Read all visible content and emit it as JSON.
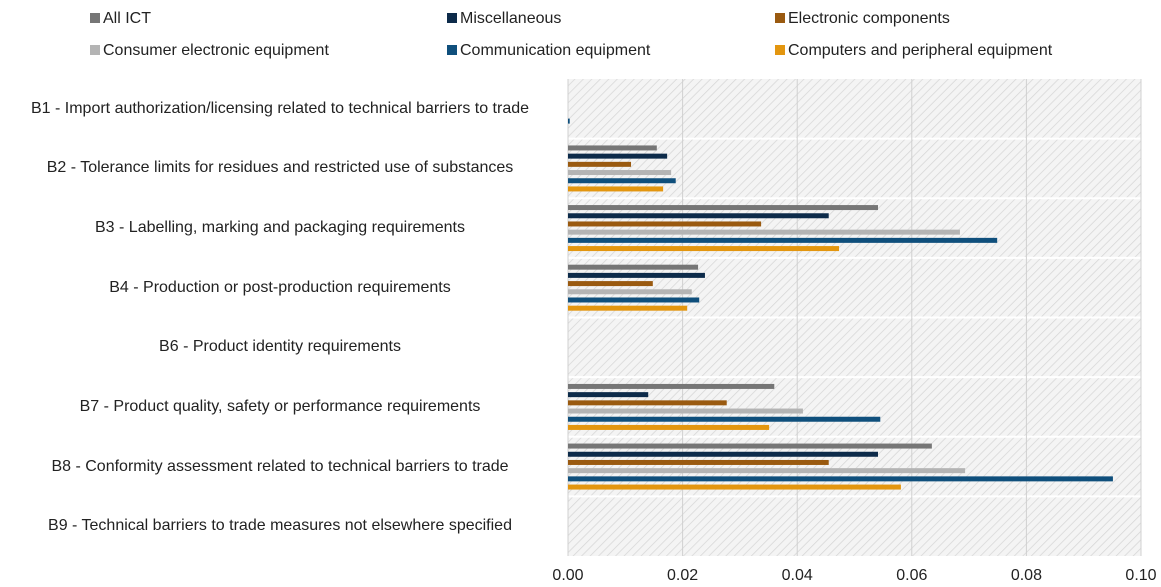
{
  "chart_data": {
    "type": "barh",
    "categories": [
      "B1 - Import authorization/licensing related to technical barriers to trade",
      "B2 - Tolerance limits for residues and restricted use of substances",
      "B3 - Labelling, marking and packaging requirements",
      "B4 - Production or post-production requirements",
      "B6 - Product identity requirements",
      "B7 - Product quality, safety or performance requirements",
      "B8 - Conformity assessment related to technical barriers to trade",
      "B9 - Technical barriers to trade measures not elsewhere specified"
    ],
    "series": [
      {
        "name": "All ICT",
        "color": "#767676",
        "values": [
          0,
          0.0155,
          0.0541,
          0.0227,
          0,
          0.036,
          0.0635,
          0
        ]
      },
      {
        "name": "Miscellaneous",
        "color": "#0d2b4a",
        "values": [
          0,
          0.0173,
          0.0455,
          0.0239,
          0,
          0.014,
          0.0541,
          0
        ]
      },
      {
        "name": "Electronic components",
        "color": "#9a5a10",
        "values": [
          0,
          0.011,
          0.0337,
          0.0148,
          0,
          0.0277,
          0.0455,
          0
        ]
      },
      {
        "name": "Consumer electronic equipment",
        "color": "#b4b4b4",
        "values": [
          0,
          0.018,
          0.0684,
          0.0216,
          0,
          0.041,
          0.0693,
          0
        ]
      },
      {
        "name": "Communication equipment",
        "color": "#0f4f7c",
        "values": [
          0.0003,
          0.0188,
          0.0749,
          0.0229,
          0,
          0.0545,
          0.0951,
          0
        ]
      },
      {
        "name": "Computers and peripheral equipment",
        "color": "#e3960f",
        "values": [
          0,
          0.0166,
          0.0473,
          0.0208,
          0,
          0.0351,
          0.0581,
          0
        ]
      }
    ],
    "xlim": [
      0,
      0.1
    ],
    "xticks": [
      {
        "value": 0,
        "label": "0.00"
      },
      {
        "value": 0.02,
        "label": "0.02"
      },
      {
        "value": 0.04,
        "label": "0.04"
      },
      {
        "value": 0.06,
        "label": "0.06"
      },
      {
        "value": 0.08,
        "label": "0.08"
      },
      {
        "value": 0.1,
        "label": "0.10"
      }
    ],
    "grid": true
  }
}
